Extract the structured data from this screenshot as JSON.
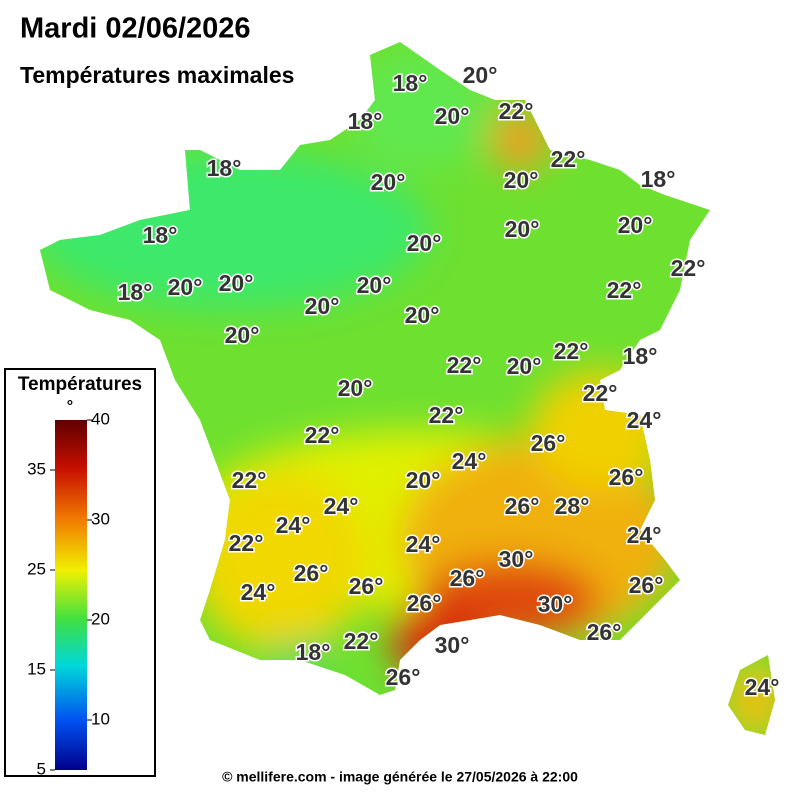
{
  "header": {
    "title": "Mardi 02/06/2026",
    "subtitle": "Températures maximales"
  },
  "legend": {
    "title": "Températures",
    "unit": "°",
    "range": [
      5,
      40
    ],
    "ticks": [
      5,
      10,
      15,
      20,
      25,
      30,
      35,
      40
    ]
  },
  "labels": [
    "18°",
    "20°",
    "18°",
    "20°",
    "22°",
    "22°",
    "20°",
    "18°",
    "18°",
    "20°",
    "18°",
    "20°",
    "20°",
    "20°",
    "22°",
    "18°",
    "20°",
    "20°",
    "20°",
    "20°",
    "20°",
    "22°",
    "20°",
    "22°",
    "20°",
    "22°",
    "18°",
    "22°",
    "20°",
    "24°",
    "22°",
    "22°",
    "26°",
    "24°",
    "20°",
    "22°",
    "26°",
    "24°",
    "26°",
    "28°",
    "24°",
    "24°",
    "22°",
    "24°",
    "30°",
    "26°",
    "26°",
    "26°",
    "24°",
    "26°",
    "26°",
    "30°",
    "26°",
    "18°",
    "22°",
    "30°",
    "26°",
    "24°"
  ],
  "footer": "© mellifere.com - image générée le 27/05/2026 à 22:00"
}
